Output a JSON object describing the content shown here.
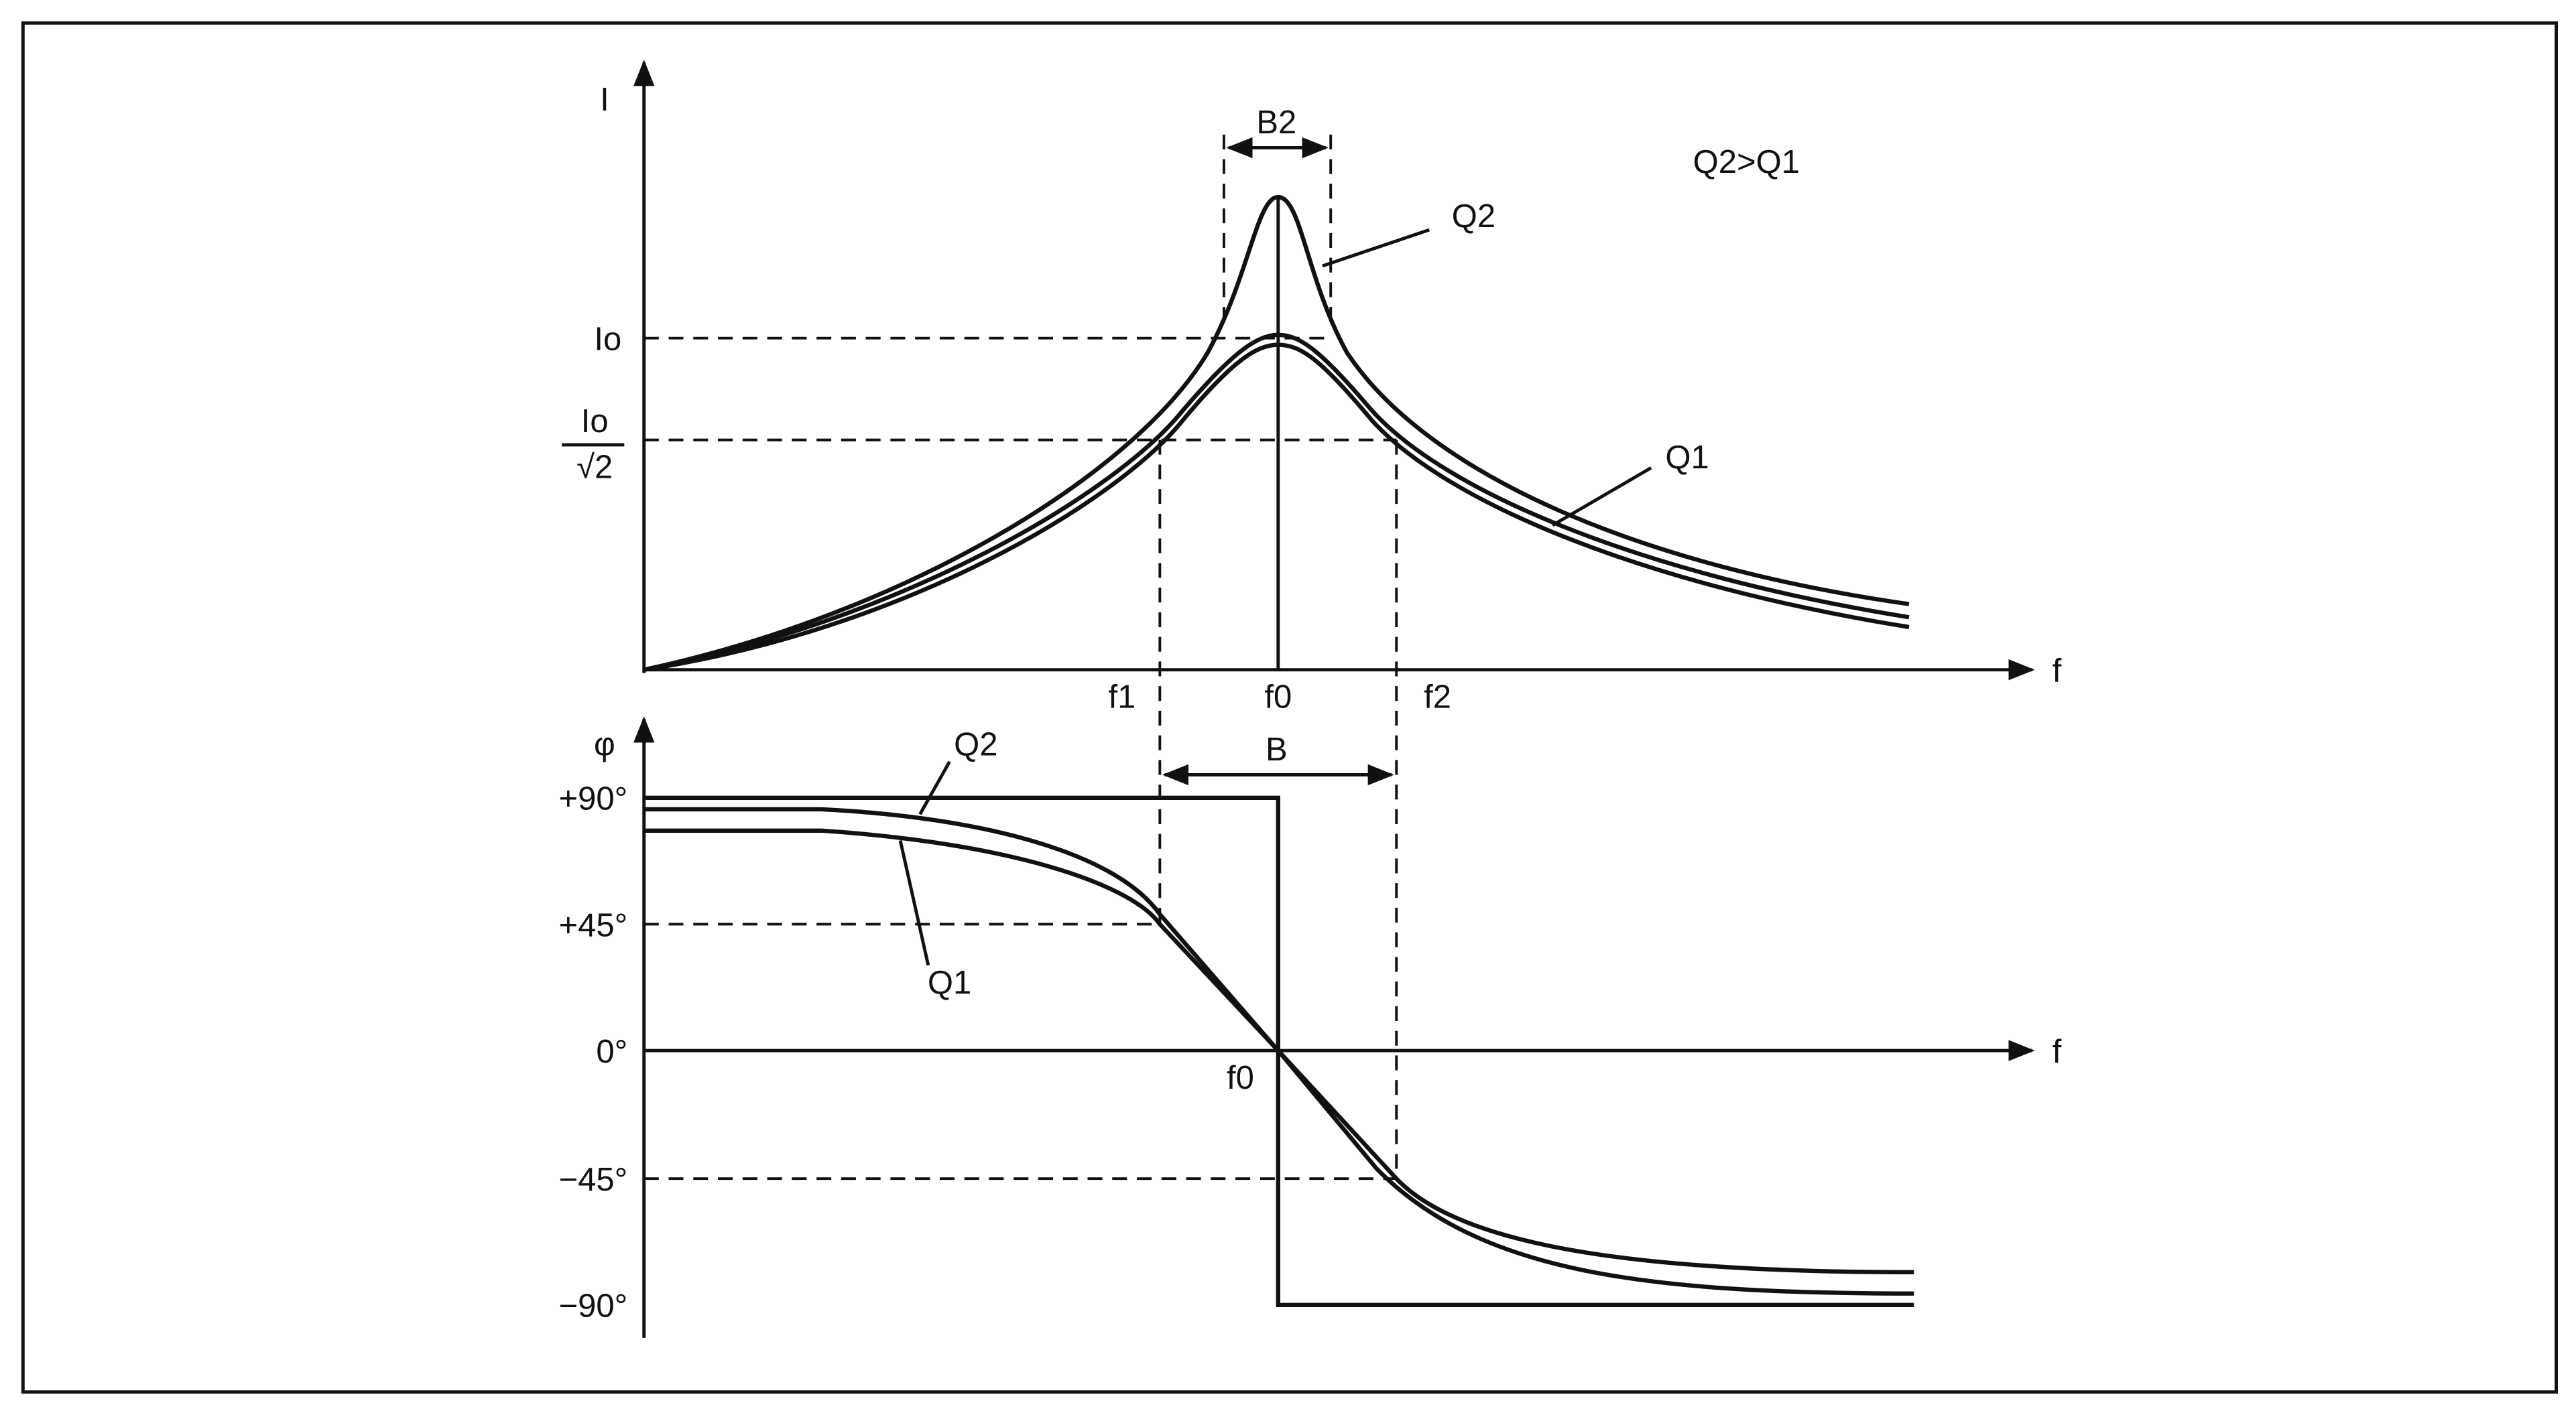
{
  "top_plot": {
    "y_axis_label": "I",
    "x_axis_label": "f",
    "io_label": "Io",
    "io_sqrt2_numerator": "Io",
    "io_sqrt2_denominator": "√2",
    "freq_labels": [
      "f1",
      "f0",
      "f2"
    ],
    "bandwidth_label": "B2",
    "curve_labels": [
      "Q2",
      "Q1"
    ],
    "note": "Q2>Q1"
  },
  "bottom_plot": {
    "y_axis_label": "φ",
    "x_axis_label": "f",
    "angle_labels": [
      "+90°",
      "+45°",
      "0°",
      "−45°",
      "−90°"
    ],
    "bandwidth_label": "B",
    "center_label": "f0",
    "curve_labels": [
      "Q2",
      "Q1"
    ]
  }
}
